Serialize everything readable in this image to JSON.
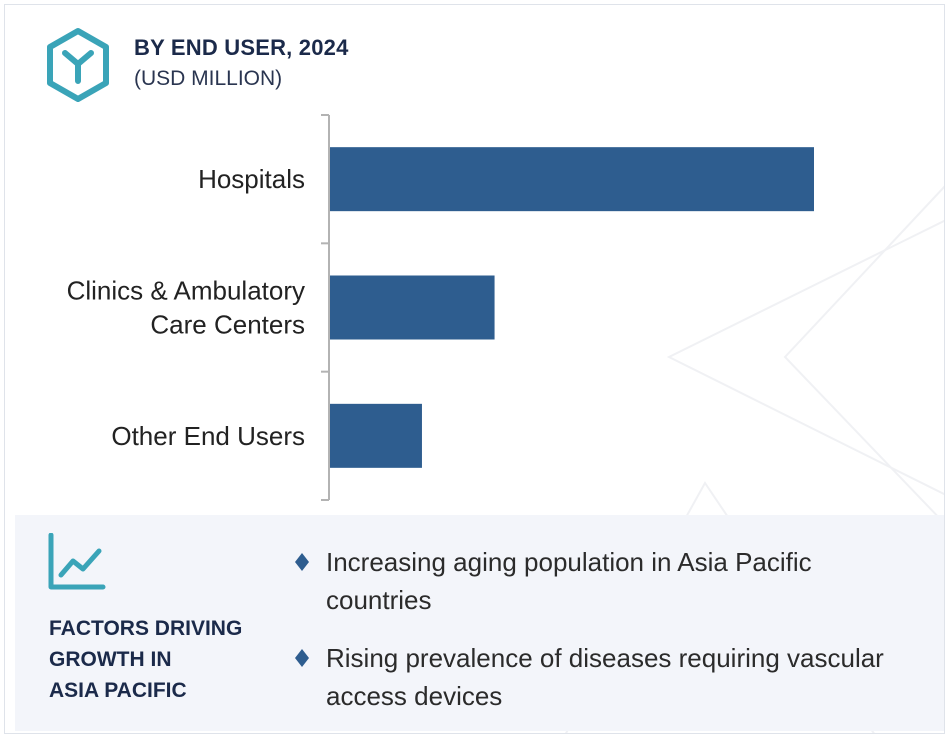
{
  "header": {
    "title": "BY END USER, 2024",
    "subtitle": "(USD MILLION)",
    "icon": "hexagon-y-logo-icon"
  },
  "colors": {
    "bar": "#2e5d8f",
    "accent": "#3aa4b8",
    "title": "#1b2a4a",
    "axis": "#b3b3b3"
  },
  "chart_data": {
    "type": "bar",
    "orientation": "horizontal",
    "categories": [
      [
        "Hospitals"
      ],
      [
        "Clinics & Ambulatory",
        "Care Centers"
      ],
      [
        "Other End Users"
      ]
    ],
    "values": [
      100,
      34,
      19
    ],
    "title": "BY END USER, 2024",
    "unit": "(USD MILLION)",
    "xlim": [
      0,
      100
    ],
    "grid": false,
    "legend": "none"
  },
  "factors": {
    "icon": "trend-line-chart-icon",
    "title_lines": [
      "FACTORS DRIVING",
      "GROWTH IN",
      "ASIA PACIFIC"
    ],
    "bullet_icon": "diamond-bullet-icon",
    "items": [
      "Increasing aging population in Asia Pacific countries",
      "Rising prevalence of diseases requiring vascular access devices"
    ]
  }
}
